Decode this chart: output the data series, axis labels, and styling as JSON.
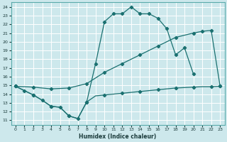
{
  "xlabel": "Humidex (Indice chaleur)",
  "bg_color": "#cde8ec",
  "grid_color": "#ffffff",
  "line_color": "#1a7070",
  "xlim": [
    -0.5,
    23.5
  ],
  "ylim": [
    10.5,
    24.5
  ],
  "xticks": [
    0,
    1,
    2,
    3,
    4,
    5,
    6,
    7,
    8,
    9,
    10,
    11,
    12,
    13,
    14,
    15,
    16,
    17,
    18,
    19,
    20,
    21,
    22,
    23
  ],
  "yticks": [
    11,
    12,
    13,
    14,
    15,
    16,
    17,
    18,
    19,
    20,
    21,
    22,
    23,
    24
  ],
  "line1_x": [
    0,
    1,
    2,
    3,
    4,
    5,
    6,
    7,
    8,
    9,
    10,
    11,
    12,
    13,
    14,
    15,
    16,
    17,
    18,
    19,
    20,
    21,
    22,
    23
  ],
  "line1_y": [
    14.9,
    14.4,
    13.9,
    13.3,
    12.6,
    12.5,
    11.5,
    11.2,
    13.1,
    13.8,
    13.9,
    14.0,
    14.1,
    14.2,
    14.3,
    14.4,
    14.5,
    14.6,
    14.7,
    14.75,
    14.8,
    14.85,
    14.85,
    14.9
  ],
  "line2_x": [
    0,
    1,
    2,
    3,
    4,
    5,
    6,
    7,
    8,
    9,
    10,
    11,
    12,
    13,
    14,
    15,
    16,
    17,
    18,
    19,
    20
  ],
  "line2_y": [
    14.9,
    14.4,
    13.9,
    13.3,
    12.6,
    12.5,
    11.5,
    11.2,
    13.1,
    17.5,
    22.3,
    23.2,
    23.2,
    24.0,
    23.2,
    23.2,
    22.7,
    21.5,
    18.5,
    19.3,
    16.3
  ],
  "line3_x": [
    0,
    2,
    4,
    6,
    8,
    10,
    12,
    14,
    16,
    18,
    20,
    21,
    22,
    23
  ],
  "line3_y": [
    14.9,
    14.8,
    14.6,
    14.7,
    15.2,
    16.5,
    17.5,
    18.5,
    19.5,
    20.5,
    21.0,
    21.2,
    21.3,
    14.9
  ]
}
